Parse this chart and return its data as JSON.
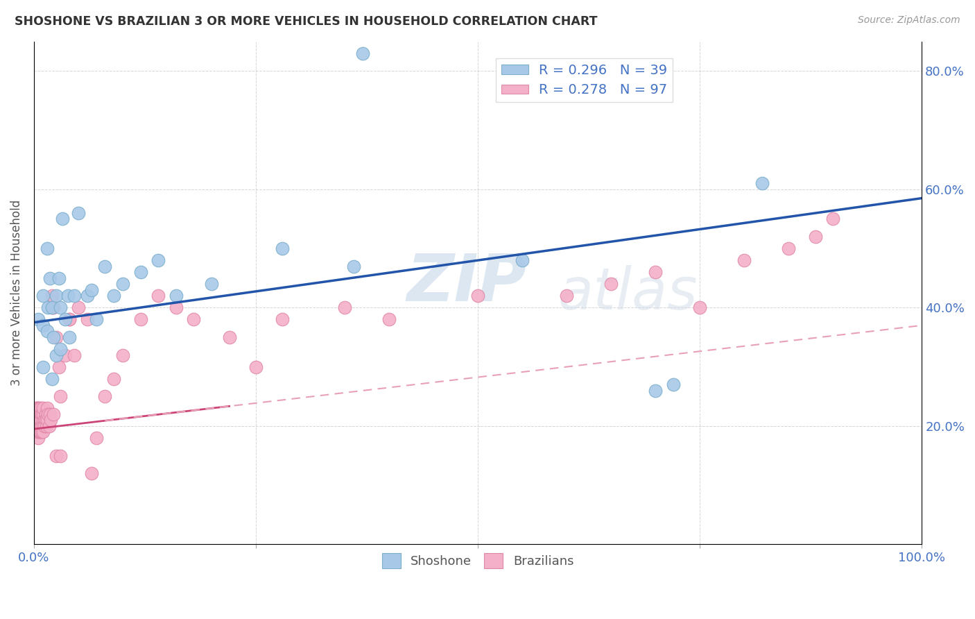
{
  "title": "SHOSHONE VS BRAZILIAN 3 OR MORE VEHICLES IN HOUSEHOLD CORRELATION CHART",
  "source_text": "Source: ZipAtlas.com",
  "ylabel": "3 or more Vehicles in Household",
  "xlim": [
    0,
    1.0
  ],
  "ylim": [
    0,
    0.85
  ],
  "shoshone_color": "#a8c8e8",
  "shoshone_edge_color": "#7aaecc",
  "brazilian_color": "#f4b0c8",
  "brazilian_edge_color": "#e088a8",
  "shoshone_line_color": "#2255aa",
  "brazilian_line_color": "#cc4477",
  "brazilian_dash_color": "#e8a0b8",
  "shoshone_R": 0.296,
  "shoshone_N": 39,
  "brazilian_R": 0.278,
  "brazilian_N": 97,
  "watermark": "ZIPatlas",
  "legend_label_shoshone": "Shoshone",
  "legend_label_brazilian": "Brazilians",
  "shoshone_line_x0": 0.0,
  "shoshone_line_y0": 0.375,
  "shoshone_line_x1": 1.0,
  "shoshone_line_y1": 0.585,
  "brazilian_line_x0": 0.0,
  "brazilian_line_y0": 0.195,
  "brazilian_line_x1": 1.0,
  "brazilian_line_y1": 0.37,
  "shoshone_x": [
    0.005,
    0.01,
    0.01,
    0.01,
    0.015,
    0.015,
    0.016,
    0.018,
    0.02,
    0.02,
    0.022,
    0.025,
    0.025,
    0.028,
    0.03,
    0.03,
    0.032,
    0.035,
    0.038,
    0.04,
    0.045,
    0.05,
    0.06,
    0.065,
    0.07,
    0.08,
    0.09,
    0.1,
    0.12,
    0.14,
    0.16,
    0.2,
    0.28,
    0.36,
    0.55,
    0.7,
    0.72,
    0.82,
    0.37
  ],
  "shoshone_y": [
    0.38,
    0.3,
    0.37,
    0.42,
    0.36,
    0.5,
    0.4,
    0.45,
    0.28,
    0.4,
    0.35,
    0.32,
    0.42,
    0.45,
    0.33,
    0.4,
    0.55,
    0.38,
    0.42,
    0.35,
    0.42,
    0.56,
    0.42,
    0.43,
    0.38,
    0.47,
    0.42,
    0.44,
    0.46,
    0.48,
    0.42,
    0.44,
    0.5,
    0.47,
    0.48,
    0.26,
    0.27,
    0.61,
    0.83
  ],
  "brazilian_x": [
    0.001,
    0.001,
    0.001,
    0.002,
    0.002,
    0.002,
    0.002,
    0.003,
    0.003,
    0.003,
    0.003,
    0.003,
    0.003,
    0.004,
    0.004,
    0.004,
    0.004,
    0.004,
    0.004,
    0.005,
    0.005,
    0.005,
    0.005,
    0.005,
    0.005,
    0.006,
    0.006,
    0.006,
    0.006,
    0.006,
    0.006,
    0.007,
    0.007,
    0.007,
    0.007,
    0.008,
    0.008,
    0.008,
    0.008,
    0.008,
    0.009,
    0.009,
    0.009,
    0.01,
    0.01,
    0.01,
    0.01,
    0.01,
    0.012,
    0.012,
    0.013,
    0.013,
    0.014,
    0.015,
    0.015,
    0.016,
    0.017,
    0.018,
    0.019,
    0.02,
    0.02,
    0.022,
    0.022,
    0.025,
    0.025,
    0.028,
    0.03,
    0.03,
    0.035,
    0.04,
    0.04,
    0.045,
    0.05,
    0.06,
    0.065,
    0.07,
    0.08,
    0.09,
    0.1,
    0.12,
    0.14,
    0.16,
    0.18,
    0.22,
    0.25,
    0.28,
    0.35,
    0.4,
    0.5,
    0.6,
    0.65,
    0.7,
    0.75,
    0.8,
    0.85,
    0.88,
    0.9
  ],
  "brazilian_y": [
    0.2,
    0.22,
    0.19,
    0.21,
    0.23,
    0.2,
    0.22,
    0.21,
    0.22,
    0.2,
    0.19,
    0.23,
    0.21,
    0.2,
    0.22,
    0.19,
    0.21,
    0.23,
    0.2,
    0.18,
    0.21,
    0.22,
    0.2,
    0.19,
    0.23,
    0.2,
    0.22,
    0.21,
    0.19,
    0.23,
    0.2,
    0.21,
    0.22,
    0.2,
    0.19,
    0.22,
    0.21,
    0.2,
    0.23,
    0.21,
    0.2,
    0.22,
    0.19,
    0.21,
    0.22,
    0.2,
    0.19,
    0.23,
    0.21,
    0.2,
    0.22,
    0.21,
    0.2,
    0.23,
    0.21,
    0.22,
    0.2,
    0.22,
    0.21,
    0.4,
    0.42,
    0.22,
    0.4,
    0.35,
    0.15,
    0.3,
    0.25,
    0.15,
    0.32,
    0.38,
    0.38,
    0.32,
    0.4,
    0.38,
    0.12,
    0.18,
    0.25,
    0.28,
    0.32,
    0.38,
    0.42,
    0.4,
    0.38,
    0.35,
    0.3,
    0.38,
    0.4,
    0.38,
    0.42,
    0.42,
    0.44,
    0.46,
    0.4,
    0.48,
    0.5,
    0.52,
    0.55
  ]
}
